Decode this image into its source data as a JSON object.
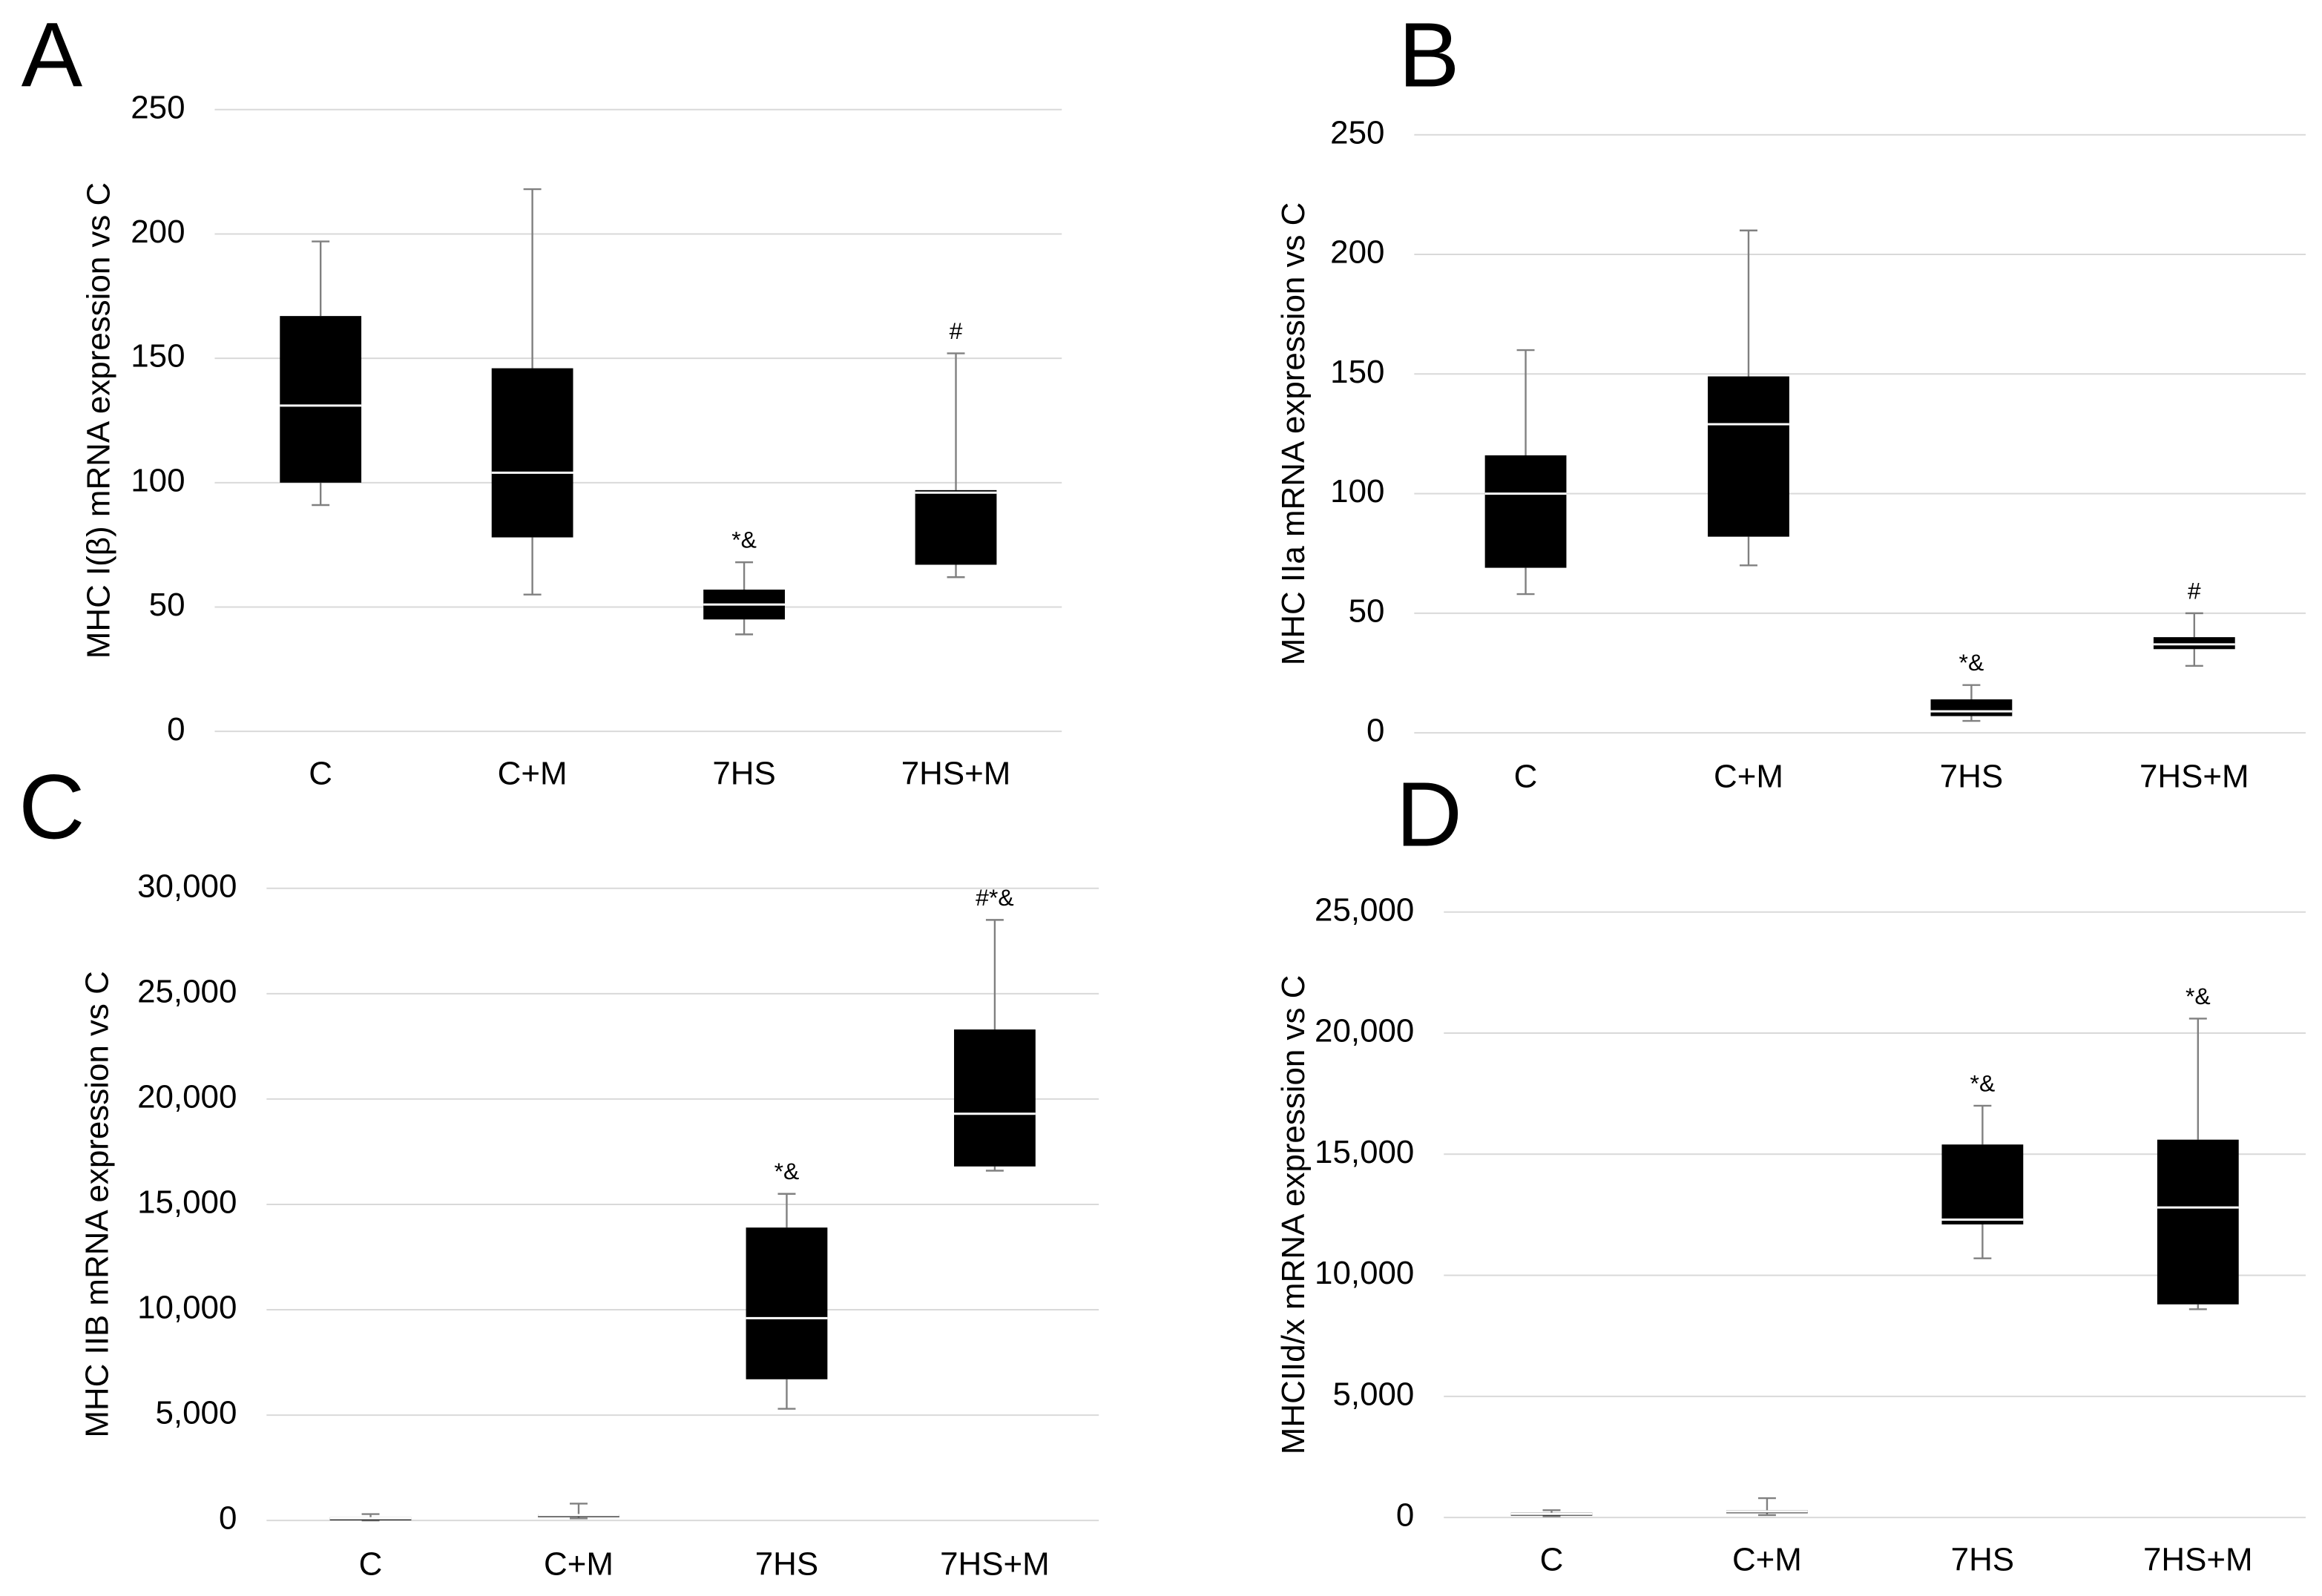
{
  "chart_data": [
    {
      "type": "box",
      "panel_label": "A",
      "ylabel": "MHC I(β) mRNA expression vs C",
      "categories": [
        "C",
        "C+M",
        "7HS",
        "7HS+M"
      ],
      "min": [
        91,
        55,
        39,
        62
      ],
      "q1": [
        100,
        78,
        45,
        67
      ],
      "median": [
        131,
        104,
        51,
        96
      ],
      "q3": [
        167,
        146,
        57,
        97
      ],
      "max": [
        197,
        218,
        68,
        152
      ],
      "annotations": [
        null,
        null,
        "*&",
        "#"
      ],
      "ylim": [
        0,
        250
      ],
      "yticks": [
        0,
        50,
        100,
        150,
        200,
        250
      ],
      "grid": true,
      "color": "#000000",
      "median_color": "#ffffff",
      "whisker_color": "#808080"
    },
    {
      "type": "box",
      "panel_label": "B",
      "ylabel": "MHC IIa mRNA expression vs C",
      "categories": [
        "C",
        "C+M",
        "7HS",
        "7HS+M"
      ],
      "min": [
        58,
        70,
        5,
        28
      ],
      "q1": [
        69,
        82,
        7,
        35
      ],
      "median": [
        100,
        129,
        9,
        37
      ],
      "q3": [
        116,
        149,
        14,
        40
      ],
      "max": [
        160,
        210,
        20,
        50
      ],
      "annotations": [
        null,
        null,
        "*&",
        "#"
      ],
      "ylim": [
        0,
        250
      ],
      "yticks": [
        0,
        50,
        100,
        150,
        200,
        250
      ],
      "grid": true,
      "color": "#000000",
      "median_color": "#ffffff",
      "whisker_color": "#808080"
    },
    {
      "type": "box",
      "panel_label": "C",
      "ylabel": "MHC IIB mRNA expression vs C",
      "categories": [
        "C",
        "C+M",
        "7HS",
        "7HS+M"
      ],
      "min": [
        0,
        100,
        5300,
        16600
      ],
      "q1": [
        50,
        200,
        6700,
        16800
      ],
      "median": [
        100,
        250,
        9600,
        19300
      ],
      "q3": [
        150,
        300,
        13900,
        23300
      ],
      "max": [
        300,
        800,
        15500,
        28500
      ],
      "annotations": [
        null,
        null,
        "*&",
        "#*&"
      ],
      "ylim": [
        0,
        30000
      ],
      "yticks": [
        0,
        {
          "value": 5000,
          "label": "5,000"
        },
        {
          "value": 10000,
          "label": "10,000"
        },
        {
          "value": 15000,
          "label": "15,000"
        },
        {
          "value": 20000,
          "label": "20,000"
        },
        {
          "value": 25000,
          "label": "25,000"
        },
        {
          "value": 30000,
          "label": "30,000"
        }
      ],
      "grid": true,
      "color": "#000000",
      "median_color": "#ffffff",
      "whisker_color": "#808080"
    },
    {
      "type": "box",
      "panel_label": "D",
      "ylabel": "MHCIId/x mRNA expression vs C",
      "categories": [
        "C",
        "C+M",
        "7HS",
        "7HS+M"
      ],
      "min": [
        50,
        100,
        10700,
        8600
      ],
      "q1": [
        100,
        200,
        12100,
        8800
      ],
      "median": [
        150,
        250,
        12300,
        12800
      ],
      "q3": [
        200,
        300,
        15400,
        15600
      ],
      "max": [
        300,
        800,
        17000,
        20600
      ],
      "annotations": [
        null,
        null,
        "*&",
        "*&"
      ],
      "ylim": [
        0,
        25000
      ],
      "yticks": [
        0,
        {
          "value": 5000,
          "label": "5,000"
        },
        {
          "value": 10000,
          "label": "10,000"
        },
        {
          "value": 15000,
          "label": "15,000"
        },
        {
          "value": 20000,
          "label": "20,000"
        },
        {
          "value": 25000,
          "label": "25,000"
        }
      ],
      "grid": true,
      "color": "#000000",
      "median_color": "#ffffff",
      "whisker_color": "#808080"
    }
  ]
}
